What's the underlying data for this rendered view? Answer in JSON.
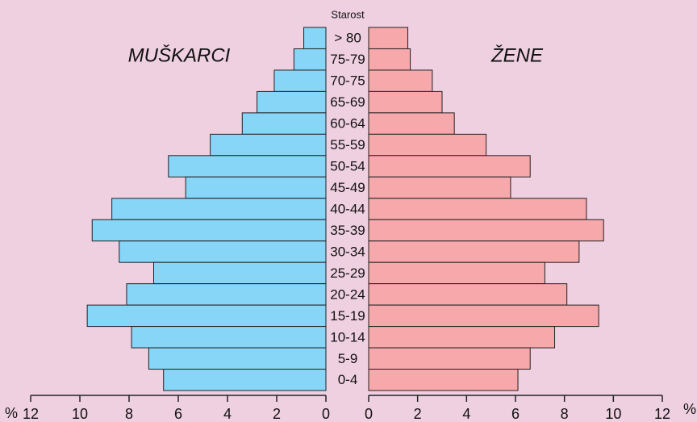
{
  "chart_data": {
    "type": "pyramid",
    "category_label": "Starost",
    "x_label": "%",
    "categories": [
      "> 80",
      "75-79",
      "70-75",
      "65-69",
      "60-64",
      "55-59",
      "50-54",
      "45-49",
      "40-44",
      "35-39",
      "30-34",
      "25-29",
      "20-24",
      "15-19",
      "10-14",
      "5-9",
      "0-4"
    ],
    "series": [
      {
        "name": "MUŠKARCI",
        "color": "#87d5f7",
        "values": [
          0.9,
          1.3,
          2.1,
          2.8,
          3.4,
          4.7,
          6.4,
          5.7,
          8.7,
          9.5,
          8.4,
          7.0,
          8.1,
          9.7,
          7.9,
          7.2,
          6.6
        ]
      },
      {
        "name": "ŽENE",
        "color": "#f7a8ab",
        "values": [
          1.6,
          1.7,
          2.6,
          3.0,
          3.5,
          4.8,
          6.6,
          5.8,
          8.9,
          9.6,
          8.6,
          7.2,
          8.1,
          9.4,
          7.6,
          6.6,
          6.1
        ]
      }
    ],
    "xlim": [
      0,
      12
    ],
    "xticks": [
      0,
      2,
      4,
      6,
      8,
      10,
      12
    ]
  }
}
